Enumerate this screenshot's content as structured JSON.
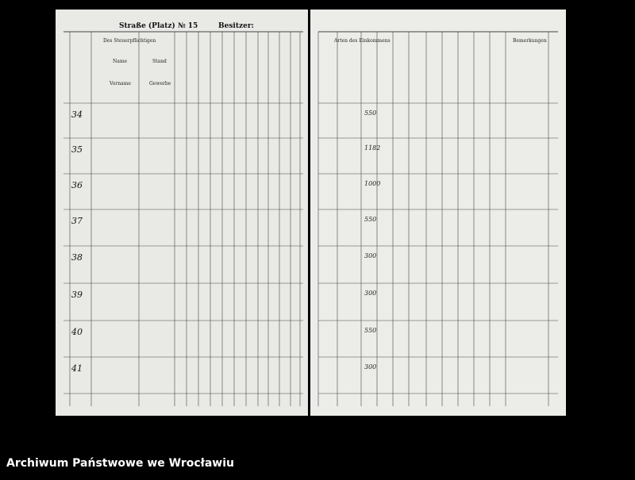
{
  "left_page": {
    "header": {
      "street": "Straße (Platz) № 15",
      "owner": "Besitzer:"
    },
    "columns": [
      "Des Steuerpflichtigen",
      "Name",
      "Vorname",
      "Stand",
      "Gewerbe"
    ],
    "rows": [
      "34",
      "35",
      "36",
      "37",
      "38",
      "39",
      "40",
      "41"
    ]
  },
  "right_page": {
    "columns": [
      "Arten des Einkommens",
      "Bemerkungen"
    ],
    "amounts": [
      "550",
      "1182",
      "1000",
      "550",
      "300",
      "300",
      "550",
      "300"
    ]
  },
  "footer": {
    "caption": "Archiwum Państwowe we Wrocławiu"
  }
}
